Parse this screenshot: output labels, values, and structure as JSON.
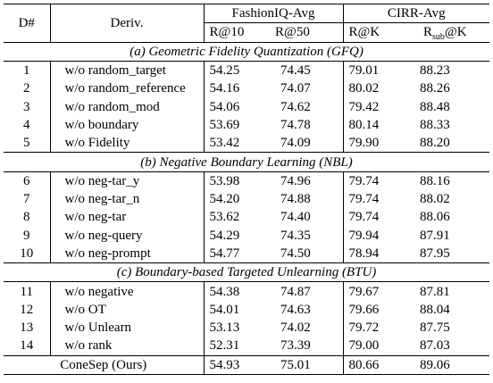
{
  "header": {
    "id_label": "D#",
    "deriv_label": "Deriv.",
    "group1": "FashionIQ-Avg",
    "group2": "CIRR-Avg",
    "metrics": [
      "R@10",
      "R@50",
      "R@K"
    ],
    "metric_rsub_main": "R",
    "metric_rsub_sub": "sub",
    "metric_rsub_tail": "@K"
  },
  "sections": [
    {
      "title": "(a) Geometric Fidelity Quantization (GFQ)",
      "rows": [
        {
          "id": "1",
          "deriv": "w/o random_target",
          "fr10": "54.25",
          "fr50": "74.45",
          "rk": "79.01",
          "rsk": "88.23"
        },
        {
          "id": "2",
          "deriv": "w/o random_reference",
          "fr10": "54.16",
          "fr50": "74.07",
          "rk": "80.02",
          "rsk": "88.26"
        },
        {
          "id": "3",
          "deriv": "w/o random_mod",
          "fr10": "54.06",
          "fr50": "74.62",
          "rk": "79.42",
          "rsk": "88.48"
        },
        {
          "id": "4",
          "deriv": "w/o boundary",
          "fr10": "53.69",
          "fr50": "74.78",
          "rk": "80.14",
          "rsk": "88.33"
        },
        {
          "id": "5",
          "deriv": "w/o Fidelity",
          "fr10": "53.42",
          "fr50": "74.09",
          "rk": "79.90",
          "rsk": "88.20"
        }
      ]
    },
    {
      "title": "(b) Negative Boundary Learning (NBL)",
      "rows": [
        {
          "id": "6",
          "deriv": "w/o neg-tar_y",
          "fr10": "53.98",
          "fr50": "74.96",
          "rk": "79.74",
          "rsk": "88.16"
        },
        {
          "id": "7",
          "deriv": "w/o neg-tar_n",
          "fr10": "54.20",
          "fr50": "74.88",
          "rk": "79.74",
          "rsk": "88.02"
        },
        {
          "id": "8",
          "deriv": "w/o neg-tar",
          "fr10": "53.62",
          "fr50": "74.40",
          "rk": "79.74",
          "rsk": "88.06"
        },
        {
          "id": "9",
          "deriv": "w/o neg-query",
          "fr10": "54.29",
          "fr50": "74.35",
          "rk": "79.94",
          "rsk": "87.91"
        },
        {
          "id": "10",
          "deriv": "w/o neg-prompt",
          "fr10": "54.77",
          "fr50": "74.50",
          "rk": "78.94",
          "rsk": "87.95"
        }
      ]
    },
    {
      "title": "(c) Boundary-based Targeted Unlearning (BTU)",
      "rows": [
        {
          "id": "11",
          "deriv": "w/o negative",
          "fr10": "54.38",
          "fr50": "74.87",
          "rk": "79.67",
          "rsk": "87.81"
        },
        {
          "id": "12",
          "deriv": "w/o OT",
          "fr10": "54.01",
          "fr50": "74.63",
          "rk": "79.66",
          "rsk": "88.04"
        },
        {
          "id": "13",
          "deriv": "w/o Unlearn",
          "fr10": "53.13",
          "fr50": "74.02",
          "rk": "79.72",
          "rsk": "87.75"
        },
        {
          "id": "14",
          "deriv": "w/o rank",
          "fr10": "52.31",
          "fr50": "73.39",
          "rk": "79.00",
          "rsk": "87.03"
        }
      ]
    }
  ],
  "final_row": {
    "label": "ConeSep (Ours)",
    "fr10": "54.93",
    "fr50": "75.01",
    "rk": "80.66",
    "rsk": "89.06"
  }
}
